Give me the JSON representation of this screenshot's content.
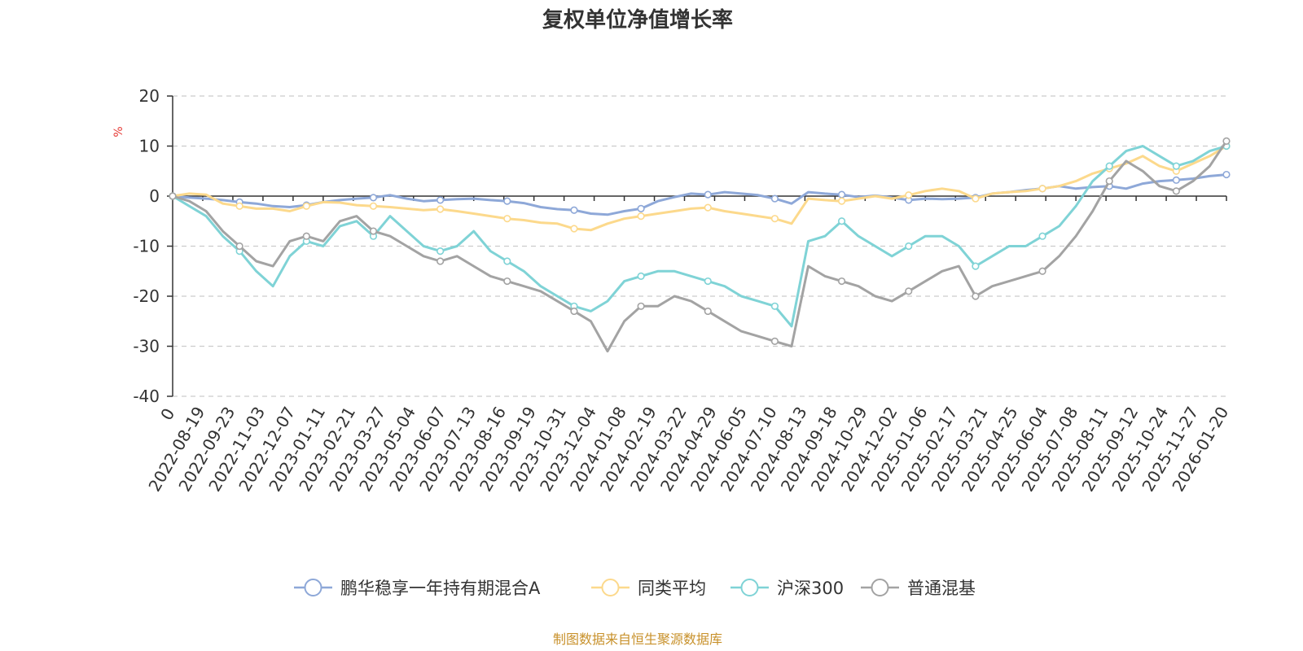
{
  "chart_data": {
    "type": "line",
    "title": "复权单位净值增长率",
    "ylabel": "%",
    "ylim": [
      -40,
      20
    ],
    "yticks": [
      20,
      10,
      0,
      -10,
      -20,
      -30,
      -40
    ],
    "yticks_text": [
      "20",
      "10",
      "0",
      "-10",
      "-20",
      "-30",
      "-40"
    ],
    "x_origin_label": "0",
    "xticks": [
      "2022-08-19",
      "2022-09-23",
      "2022-11-03",
      "2022-12-07",
      "2023-01-11",
      "2023-02-21",
      "2023-03-27",
      "2023-05-04",
      "2023-06-07",
      "2023-07-13",
      "2023-08-16",
      "2023-09-19",
      "2023-10-31",
      "2023-12-04",
      "2024-01-08",
      "2024-02-19",
      "2024-03-22",
      "2024-04-29",
      "2024-06-05",
      "2024-07-10",
      "2024-08-13",
      "2024-09-18",
      "2024-10-29",
      "2024-12-02",
      "2025-01-06",
      "2025-02-17",
      "2025-03-21",
      "2025-04-25",
      "2025-06-04",
      "2025-07-08",
      "2025-08-11",
      "2025-09-12",
      "2025-10-24",
      "2025-11-27",
      "2026-01-20"
    ],
    "grid": true,
    "legend_position": "bottom",
    "series": [
      {
        "name": "鹏华稳享一年持有期混合A",
        "color": "#8ea8d8",
        "values": [
          0,
          -0.3,
          -0.5,
          -0.8,
          -1.2,
          -1.5,
          -2,
          -2.2,
          -1.8,
          -1.2,
          -0.8,
          -0.5,
          -0.3,
          0.2,
          -0.5,
          -1,
          -0.8,
          -0.6,
          -0.5,
          -0.8,
          -1,
          -1.4,
          -2.2,
          -2.6,
          -2.8,
          -3.5,
          -3.7,
          -3,
          -2.5,
          -1,
          -0.2,
          0.5,
          0.3,
          0.8,
          0.5,
          0.2,
          -0.5,
          -1.5,
          0.8,
          0.5,
          0.3,
          -0.2,
          0.1,
          -0.3,
          -0.8,
          -0.5,
          -0.6,
          -0.5,
          -0.3,
          0.5,
          0.8,
          1.2,
          1.5,
          2,
          1.5,
          1.8,
          2,
          1.5,
          2.5,
          3,
          3.2,
          3.5,
          4,
          4.3
        ]
      },
      {
        "name": "同类平均",
        "color": "#fcd98c",
        "values": [
          0,
          0.5,
          0.3,
          -1.5,
          -2,
          -2.5,
          -2.5,
          -3,
          -2,
          -1.2,
          -1.3,
          -1.8,
          -2,
          -2.2,
          -2.5,
          -2.8,
          -2.6,
          -3,
          -3.5,
          -4,
          -4.5,
          -4.8,
          -5.3,
          -5.5,
          -6.5,
          -6.8,
          -5.5,
          -4.5,
          -4,
          -3.5,
          -3,
          -2.5,
          -2.3,
          -3,
          -3.5,
          -4,
          -4.5,
          -5.5,
          -0.5,
          -0.8,
          -1,
          -0.5,
          0,
          -0.5,
          0.2,
          1,
          1.5,
          1,
          -0.5,
          0.5,
          0.8,
          1,
          1.5,
          2,
          3,
          4.5,
          5.5,
          6.5,
          8,
          6,
          5,
          6.5,
          8,
          10
        ]
      },
      {
        "name": "沪深300",
        "color": "#7fd3d6",
        "values": [
          0,
          -2,
          -4,
          -8,
          -11,
          -15,
          -18,
          -12,
          -9,
          -10,
          -6,
          -5,
          -8,
          -4,
          -7,
          -10,
          -11,
          -10,
          -7,
          -11,
          -13,
          -15,
          -18,
          -20,
          -22,
          -23,
          -21,
          -17,
          -16,
          -15,
          -15,
          -16,
          -17,
          -18,
          -20,
          -21,
          -22,
          -26,
          -9,
          -8,
          -5,
          -8,
          -10,
          -12,
          -10,
          -8,
          -8,
          -10,
          -14,
          -12,
          -10,
          -10,
          -8,
          -6,
          -2,
          3,
          6,
          9,
          10,
          8,
          6,
          7,
          9,
          10
        ]
      },
      {
        "name": "普通混基",
        "color": "#a3a3a3",
        "values": [
          0,
          -1,
          -3,
          -7,
          -10,
          -13,
          -14,
          -9,
          -8,
          -9,
          -5,
          -4,
          -7,
          -8,
          -10,
          -12,
          -13,
          -12,
          -14,
          -16,
          -17,
          -18,
          -19,
          -21,
          -23,
          -25,
          -31,
          -25,
          -22,
          -22,
          -20,
          -21,
          -23,
          -25,
          -27,
          -28,
          -29,
          -30,
          -14,
          -16,
          -17,
          -18,
          -20,
          -21,
          -19,
          -17,
          -15,
          -14,
          -20,
          -18,
          -17,
          -16,
          -15,
          -12,
          -8,
          -3,
          3,
          7,
          5,
          2,
          1,
          3,
          6,
          11
        ]
      }
    ]
  },
  "footer": "制图数据来自恒生聚源数据库"
}
